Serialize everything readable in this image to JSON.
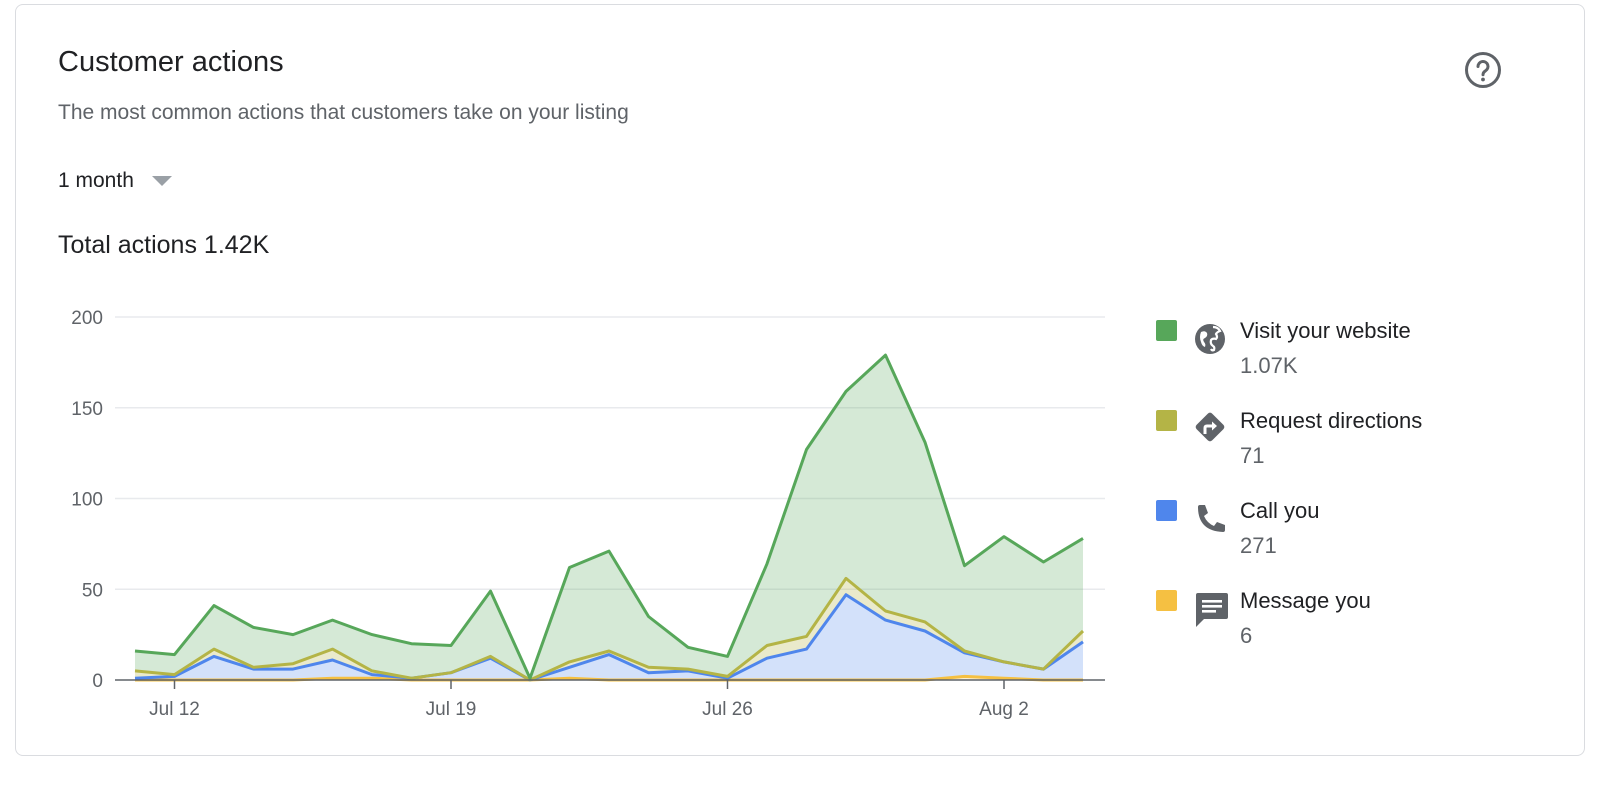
{
  "card": {
    "title": "Customer actions",
    "subtitle": "The most common actions that customers take on your listing",
    "help_icon": "help-circle-icon"
  },
  "range_selector": {
    "selected": "1 month",
    "icon": "caret-down-icon"
  },
  "total": {
    "label": "Total actions",
    "value": "1.42K"
  },
  "legend": [
    {
      "label": "Visit your website",
      "value": "1.07K",
      "color": "#57a75a",
      "icon": "globe-icon"
    },
    {
      "label": "Request directions",
      "value": "71",
      "color": "#b4b446",
      "icon": "directions-icon"
    },
    {
      "label": "Call you",
      "value": "271",
      "color": "#4f86ec",
      "icon": "phone-icon"
    },
    {
      "label": "Message you",
      "value": "6",
      "color": "#f5c042",
      "icon": "message-icon"
    }
  ],
  "chart_data": {
    "type": "area",
    "stacked": true,
    "title": "",
    "xlabel": "",
    "ylabel": "",
    "ylim": [
      0,
      200
    ],
    "yticks": [
      "0",
      "50",
      "100",
      "150",
      "200"
    ],
    "xticks": [
      {
        "index": 1,
        "label": "Jul 12"
      },
      {
        "index": 8,
        "label": "Jul 19"
      },
      {
        "index": 15,
        "label": "Jul 26"
      },
      {
        "index": 22,
        "label": "Aug 2"
      }
    ],
    "x": [
      "Jul 11",
      "Jul 12",
      "Jul 13",
      "Jul 14",
      "Jul 15",
      "Jul 16",
      "Jul 17",
      "Jul 18",
      "Jul 19",
      "Jul 20",
      "Jul 21",
      "Jul 22",
      "Jul 23",
      "Jul 24",
      "Jul 25",
      "Jul 26",
      "Jul 27",
      "Jul 28",
      "Jul 29",
      "Jul 30",
      "Jul 31",
      "Aug 1",
      "Aug 2",
      "Aug 3",
      "Aug 4"
    ],
    "grid": true,
    "legend_position": "right",
    "series": [
      {
        "name": "Message you",
        "color": "#f5c042",
        "values": [
          0,
          0,
          0,
          0,
          0,
          1,
          1,
          0,
          0,
          0,
          0,
          1,
          0,
          0,
          0,
          0,
          0,
          0,
          0,
          0,
          0,
          2,
          1,
          0,
          0
        ]
      },
      {
        "name": "Call you",
        "color": "#4f86ec",
        "values": [
          1,
          2,
          13,
          6,
          6,
          10,
          2,
          1,
          4,
          12,
          0,
          6,
          14,
          4,
          5,
          1,
          12,
          17,
          47,
          33,
          27,
          13,
          9,
          6,
          21
        ]
      },
      {
        "name": "Request directions",
        "color": "#b4b446",
        "values": [
          4,
          1,
          4,
          1,
          3,
          6,
          2,
          0,
          0,
          1,
          0,
          3,
          2,
          3,
          1,
          1,
          7,
          7,
          9,
          5,
          5,
          1,
          0,
          0,
          6
        ]
      },
      {
        "name": "Visit your website",
        "color": "#57a75a",
        "values": [
          11,
          11,
          24,
          22,
          16,
          16,
          20,
          19,
          15,
          36,
          1,
          52,
          55,
          28,
          12,
          11,
          45,
          103,
          103,
          141,
          99,
          47,
          69,
          59,
          51
        ]
      }
    ]
  }
}
